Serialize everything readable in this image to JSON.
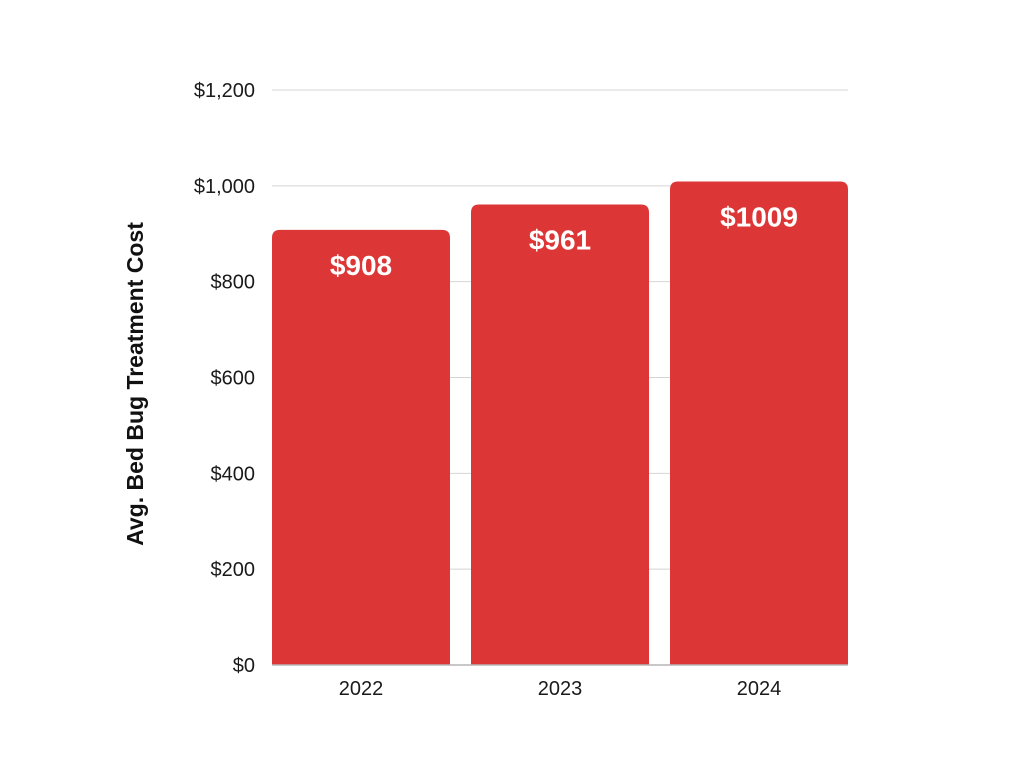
{
  "chart_data": {
    "type": "bar",
    "categories": [
      "2022",
      "2023",
      "2024"
    ],
    "values": [
      908,
      961,
      1009
    ],
    "data_labels": [
      "$908",
      "$961",
      "$1009"
    ],
    "title": "",
    "xlabel": "",
    "ylabel": "Avg. Bed Bug Treatment Cost",
    "ylim": [
      0,
      1200
    ],
    "yticks": [
      0,
      200,
      400,
      600,
      800,
      1000,
      1200
    ],
    "ytick_labels": [
      "$0",
      "$200",
      "$400",
      "$600",
      "$800",
      "$1,000",
      "$1,200"
    ],
    "grid": true,
    "legend": "none",
    "colors": {
      "bar": "#DD3636",
      "grid": "#d4d4d4",
      "axis": "#b5b5b5",
      "data_label": "#ffffff",
      "text": "#1a1a1a"
    }
  }
}
